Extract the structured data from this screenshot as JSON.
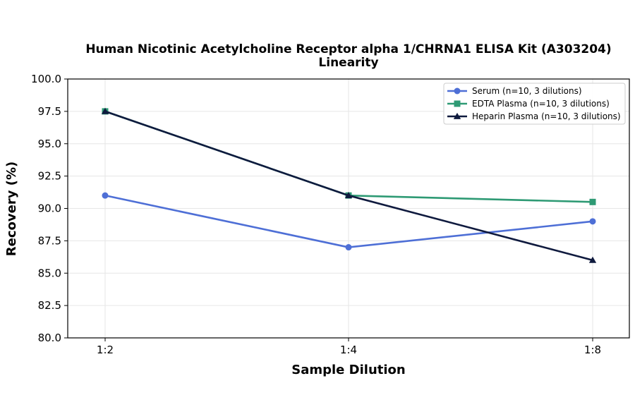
{
  "chart_data": {
    "type": "line",
    "title": "Human Nicotinic Acetylcholine Receptor alpha 1/CHRNA1 ELISA Kit (A303204)",
    "subtitle": "Linearity",
    "xlabel": "Sample Dilution",
    "ylabel": "Recovery (%)",
    "categories": [
      "1:2",
      "1:4",
      "1:8"
    ],
    "ylim": [
      80.0,
      100.0
    ],
    "yticks": [
      "80.0",
      "82.5",
      "85.0",
      "87.5",
      "90.0",
      "92.5",
      "95.0",
      "97.5",
      "100.0"
    ],
    "grid": true,
    "legend_position": "top-right",
    "series": [
      {
        "name": "Serum (n=10, 3 dilutions)",
        "values": [
          91.0,
          87.0,
          89.0
        ],
        "color": "#4e6fd6",
        "marker": "circle"
      },
      {
        "name": "EDTA Plasma (n=10, 3 dilutions)",
        "values": [
          97.5,
          91.0,
          90.5
        ],
        "color": "#2e9a74",
        "marker": "square"
      },
      {
        "name": "Heparin Plasma (n=10, 3 dilutions)",
        "values": [
          97.5,
          91.0,
          86.0
        ],
        "color": "#0f1a3e",
        "marker": "triangle"
      }
    ]
  }
}
